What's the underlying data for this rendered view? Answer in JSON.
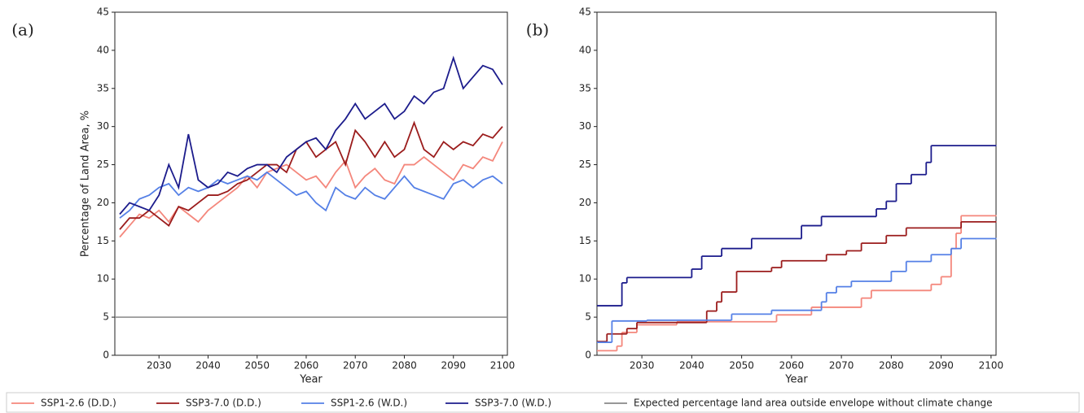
{
  "chart_data": [
    {
      "type": "line",
      "label": "(a)",
      "xlabel": "Year",
      "ylabel": "Percentage of Land Area, %",
      "xlim": [
        2021,
        2101
      ],
      "ylim": [
        0,
        45
      ],
      "xticks": [
        2030,
        2040,
        2050,
        2060,
        2070,
        2080,
        2090,
        2100
      ],
      "yticks": [
        0,
        5,
        10,
        15,
        20,
        25,
        30,
        35,
        40,
        45
      ],
      "x": [
        2022,
        2024,
        2026,
        2028,
        2030,
        2032,
        2034,
        2036,
        2038,
        2040,
        2042,
        2044,
        2046,
        2048,
        2050,
        2052,
        2054,
        2056,
        2058,
        2060,
        2062,
        2064,
        2066,
        2068,
        2070,
        2072,
        2074,
        2076,
        2078,
        2080,
        2082,
        2084,
        2086,
        2088,
        2090,
        2092,
        2094,
        2096,
        2098,
        2100
      ],
      "series": [
        {
          "name": "SSP1-2.6 (D.D.)",
          "color": "#f4877c",
          "values": [
            15.5,
            17,
            18.5,
            18,
            19,
            17.5,
            19.5,
            18.5,
            17.5,
            19,
            20,
            21,
            22,
            23.5,
            22,
            24,
            24.5,
            25,
            24,
            23,
            23.5,
            22,
            24,
            25.5,
            22,
            23.5,
            24.5,
            23,
            22.5,
            25,
            25,
            26,
            25,
            24,
            23,
            25,
            24.5,
            26,
            25.5,
            28
          ]
        },
        {
          "name": "SSP3-7.0 (D.D.)",
          "color": "#9b1c1c",
          "values": [
            16.5,
            18,
            18,
            19,
            18,
            17,
            19.5,
            19,
            20,
            21,
            21,
            21.5,
            22.5,
            23,
            24,
            25,
            25,
            24,
            27,
            28,
            26,
            27,
            28,
            25,
            29.5,
            28,
            26,
            28,
            26,
            27,
            30.5,
            27,
            26,
            28,
            27,
            28,
            27.5,
            29,
            28.5,
            30
          ]
        },
        {
          "name": "SSP1-2.6 (W.D.)",
          "color": "#5580e6",
          "values": [
            18,
            19,
            20.5,
            21,
            22,
            22.5,
            21,
            22,
            21.5,
            22,
            23,
            22.5,
            23,
            23.5,
            23,
            24,
            23,
            22,
            21,
            21.5,
            20,
            19,
            22,
            21,
            20.5,
            22,
            21,
            20.5,
            22,
            23.5,
            22,
            21.5,
            21,
            20.5,
            22.5,
            23,
            22,
            23,
            23.5,
            22.5
          ]
        },
        {
          "name": "SSP3-7.0 (W.D.)",
          "color": "#1c1c8c",
          "values": [
            18.5,
            20,
            19.5,
            19,
            21,
            25,
            22,
            29,
            23,
            22,
            22.5,
            24,
            23.5,
            24.5,
            25,
            25,
            24,
            26,
            27,
            28,
            28.5,
            27,
            29.5,
            31,
            33,
            31,
            32,
            33,
            31,
            32,
            34,
            33,
            34.5,
            35,
            39,
            35,
            36.5,
            38,
            37.5,
            35.5
          ]
        }
      ],
      "reference": {
        "name": "Expected percentage land area outside envelope without climate change",
        "color": "#888888",
        "x": [
          2021,
          2101
        ],
        "values": [
          5,
          5
        ]
      }
    },
    {
      "type": "step",
      "label": "(b)",
      "xlabel": "Year",
      "xlim": [
        2021,
        2101
      ],
      "ylim": [
        0,
        45
      ],
      "xticks": [
        2030,
        2040,
        2050,
        2060,
        2070,
        2080,
        2090,
        2100
      ],
      "yticks": [
        0,
        5,
        10,
        15,
        20,
        25,
        30,
        35,
        40,
        45
      ],
      "series": [
        {
          "color": "#f4877c",
          "x": [
            2021,
            2025,
            2026,
            2029,
            2037,
            2057,
            2064,
            2074,
            2076,
            2088,
            2090,
            2092,
            2093,
            2094,
            2101
          ],
          "values": [
            0.6,
            1.2,
            3,
            4,
            4.4,
            5.3,
            6.3,
            7.5,
            8.5,
            9.3,
            10.3,
            14,
            16,
            18.3,
            18.3
          ]
        },
        {
          "color": "#9b1c1c",
          "x": [
            2021,
            2023,
            2027,
            2029,
            2043,
            2045,
            2046,
            2049,
            2056,
            2058,
            2067,
            2071,
            2074,
            2079,
            2083,
            2094,
            2101
          ],
          "values": [
            1.8,
            2.8,
            3.5,
            4.3,
            5.8,
            7,
            8.3,
            11,
            11.5,
            12.4,
            13.2,
            13.7,
            14.7,
            15.7,
            16.7,
            17.5,
            17.5
          ]
        },
        {
          "color": "#5580e6",
          "x": [
            2021,
            2024,
            2031,
            2048,
            2056,
            2066,
            2067,
            2069,
            2072,
            2080,
            2083,
            2088,
            2092,
            2094,
            2101
          ],
          "values": [
            1.7,
            4.5,
            4.6,
            5.4,
            5.9,
            7,
            8.2,
            9,
            9.7,
            11,
            12.3,
            13.2,
            14,
            15.3,
            15.3
          ]
        },
        {
          "color": "#1c1c8c",
          "x": [
            2021,
            2026,
            2027,
            2040,
            2042,
            2046,
            2052,
            2062,
            2066,
            2077,
            2079,
            2081,
            2084,
            2087,
            2088,
            2101
          ],
          "values": [
            6.5,
            9.5,
            10.2,
            11.3,
            13,
            14,
            15.3,
            17,
            18.2,
            19.2,
            20.2,
            22.5,
            23.7,
            25.3,
            27.5,
            27.5
          ]
        }
      ]
    }
  ]
}
